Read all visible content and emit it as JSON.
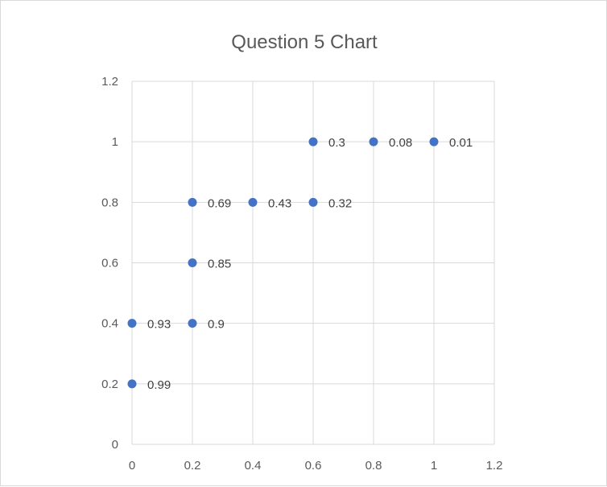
{
  "chart_data": {
    "type": "scatter",
    "title": "Question 5 Chart",
    "xlabel": "",
    "ylabel": "",
    "xlim": [
      0,
      1.2
    ],
    "ylim": [
      0,
      1.2
    ],
    "x_ticks": [
      "0",
      "0.2",
      "0.4",
      "0.6",
      "0.8",
      "1",
      "1.2"
    ],
    "y_ticks": [
      "0",
      "0.2",
      "0.4",
      "0.6",
      "0.8",
      "1",
      "1.2"
    ],
    "grid": true,
    "legend": "none",
    "marker_color": "#4472C4",
    "grid_color": "#d9d9d9",
    "series": [
      {
        "points": [
          {
            "x": 0,
            "y": 0.2,
            "label": "0.99"
          },
          {
            "x": 0,
            "y": 0.4,
            "label": "0.93"
          },
          {
            "x": 0.2,
            "y": 0.4,
            "label": "0.9"
          },
          {
            "x": 0.2,
            "y": 0.6,
            "label": "0.85"
          },
          {
            "x": 0.2,
            "y": 0.8,
            "label": "0.69"
          },
          {
            "x": 0.4,
            "y": 0.8,
            "label": "0.43"
          },
          {
            "x": 0.6,
            "y": 0.8,
            "label": "0.32"
          },
          {
            "x": 0.6,
            "y": 1,
            "label": "0.3"
          },
          {
            "x": 0.8,
            "y": 1,
            "label": "0.08"
          },
          {
            "x": 1,
            "y": 1,
            "label": "0.01"
          }
        ]
      }
    ]
  }
}
